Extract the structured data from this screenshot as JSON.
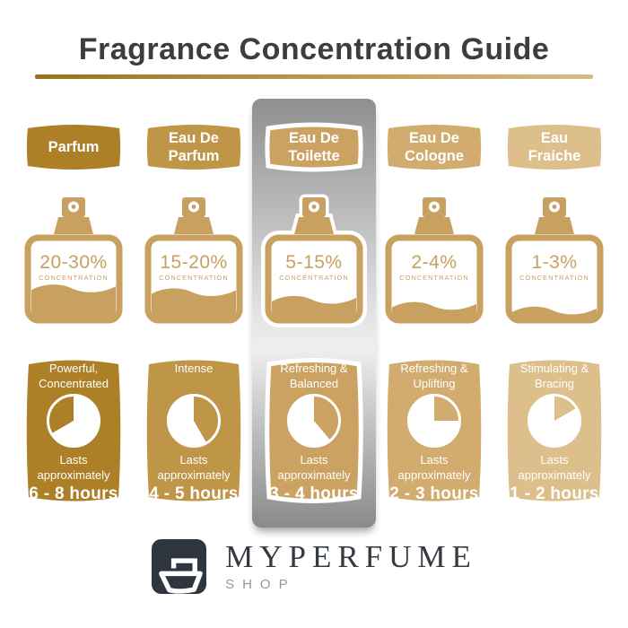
{
  "title": "Fragrance Concentration Guide",
  "colors": {
    "bottle_gold": "#c8a05f",
    "title_text": "#3d3d3f",
    "underline_left": "#9c711c",
    "underline_right": "#d9bb83",
    "panel_silver_top": "#8f8f8f",
    "panel_silver_light": "#efefef",
    "panel_silver_bottom": "#8a8a8a",
    "logo_badge": "#2f3640",
    "brand_text": "#333a42",
    "brand_sub_text": "#94989d",
    "text_on_gold": "#ffffff"
  },
  "columns": [
    {
      "name": "Parfum",
      "color": "#ad7f27",
      "highlighted": false,
      "bottle": {
        "percent": "20-30%",
        "label": "CONCENTRATION",
        "fill_percent": 38
      },
      "card": {
        "description": "Powerful,\nConcentrated",
        "lasts": "Lasts\napproximately",
        "hours": "6 - 8 hours",
        "clock_wedge_deg": {
          "from": 240,
          "to": 360
        }
      }
    },
    {
      "name": "Eau De\nParfum",
      "color": "#bf9548",
      "highlighted": false,
      "bottle": {
        "percent": "15-20%",
        "label": "CONCENTRATION",
        "fill_percent": 33
      },
      "card": {
        "description": "Intense",
        "lasts": "Lasts\napproximately",
        "hours": "4 - 5 hours",
        "clock_wedge_deg": {
          "from": 0,
          "to": 150
        }
      }
    },
    {
      "name": "Eau De\nToilette",
      "color": "#cba262",
      "highlighted": true,
      "bottle": {
        "percent": "5-15%",
        "label": "CONCENTRATION",
        "fill_percent": 23
      },
      "card": {
        "description": "Refreshing &\nBalanced",
        "lasts": "Lasts\napproximately",
        "hours": "3 - 4 hours",
        "clock_wedge_deg": {
          "from": 0,
          "to": 140
        }
      }
    },
    {
      "name": "Eau De\nCologne",
      "color": "#d1ac6e",
      "highlighted": false,
      "bottle": {
        "percent": "2-4%",
        "label": "CONCENTRATION",
        "fill_percent": 15
      },
      "card": {
        "description": "Refreshing &\nUplifting",
        "lasts": "Lasts\napproximately",
        "hours": "2 - 3 hours",
        "clock_wedge_deg": {
          "from": 0,
          "to": 90
        }
      }
    },
    {
      "name": "Eau\nFraiche",
      "color": "#dcbf8b",
      "highlighted": false,
      "bottle": {
        "percent": "1-3%",
        "label": "CONCENTRATION",
        "fill_percent": 9
      },
      "card": {
        "description": "Stimulating &\nBracing",
        "lasts": "Lasts\napproximately",
        "hours": "1 - 2 hours",
        "clock_wedge_deg": {
          "from": 0,
          "to": 60
        }
      }
    }
  ],
  "brand": {
    "name": "MYPERFUME",
    "subtitle": "SHOP"
  }
}
